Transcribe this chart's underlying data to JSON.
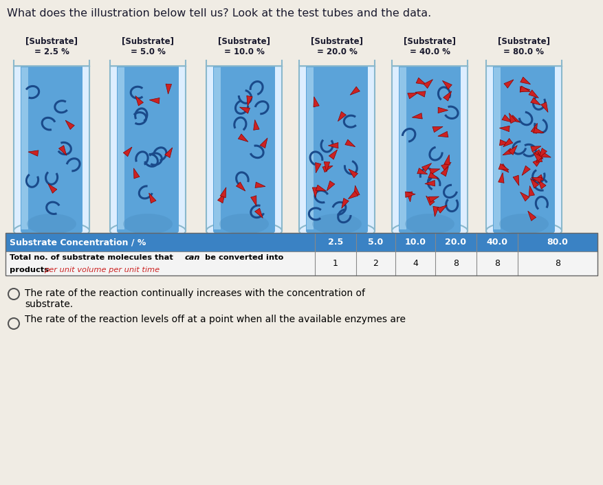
{
  "title": "What does the illustration below tell us? Look at the test tubes and the data.",
  "title_fontsize": 11.5,
  "page_bg": "#e8e3db",
  "content_bg": "#f0ece4",
  "tube_labels": [
    "[Substrate]\n= 2.5 %",
    "[Substrate]\n= 5.0 %",
    "[Substrate]\n= 10.0 %",
    "[Substrate]\n= 20.0 %",
    "[Substrate]\n= 40.0 %",
    "[Substrate]\n= 80.0 %"
  ],
  "concentrations": [
    "2.5",
    "5.0",
    "10.0",
    "20.0",
    "40.0",
    "80.0"
  ],
  "converted": [
    "1",
    "2",
    "4",
    "8",
    "8",
    "8"
  ],
  "liquid_color": "#5ba3d9",
  "liquid_highlight": "#7ab8e8",
  "tube_glass_color": "#c8dff0",
  "tube_border_color": "#8ab0cc",
  "table_header_bg": "#3a82c4",
  "table_header_fg": "#ffffff",
  "table_row_bg": "#e8f0f8",
  "table_sep_color": "#aaaaaa",
  "row1_label": "Substrate Concentration / %",
  "row2_label1": "Total no. of substrate molecules that ",
  "row2_label_can": "can",
  "row2_label2": " be converted into",
  "row2_label_products": "products ",
  "row2_label_italic": "per unit volume per unit time",
  "option1_text_line1": "The rate of the reaction continually increases with the concentration of",
  "option1_text_line2": "substrate.",
  "option2_text": "The rate of the reaction levels off at a point when all the available enzymes are",
  "enzyme_color": "#1a4a8a",
  "substrate_color": "#cc2222",
  "substrate_edge": "#880000"
}
